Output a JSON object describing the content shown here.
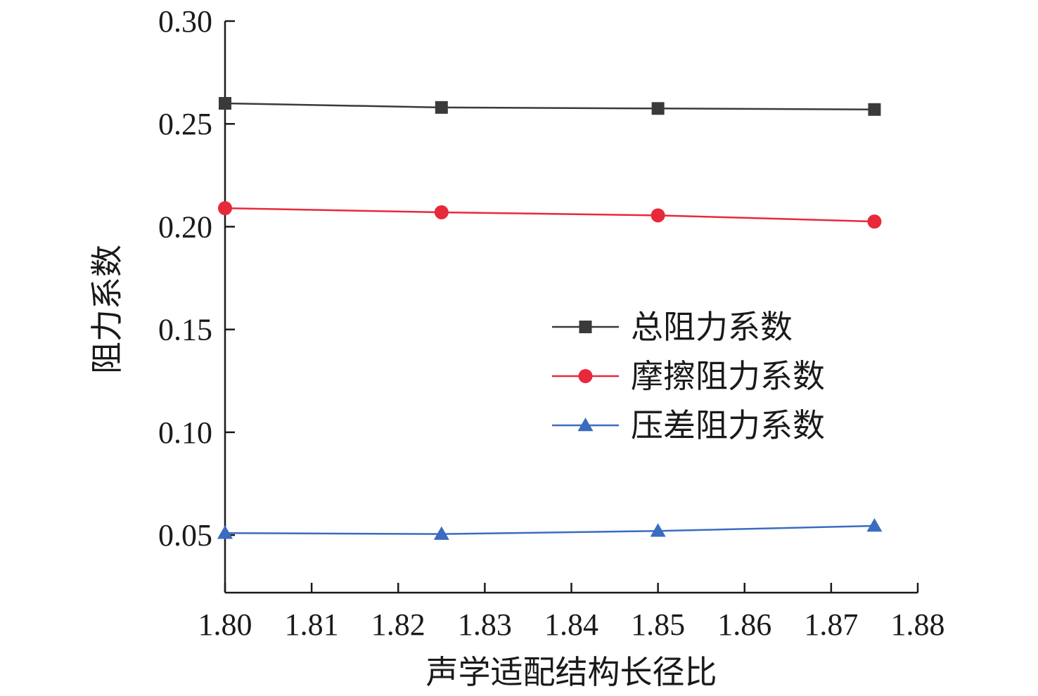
{
  "chart_data": {
    "type": "line",
    "title": "",
    "xlabel": "声学适配结构长径比",
    "ylabel": "阻力系数",
    "x": [
      1.8,
      1.825,
      1.85,
      1.875
    ],
    "xlim": [
      1.8,
      1.88
    ],
    "ylim": [
      0.022,
      0.3
    ],
    "xticks": [
      "1.80",
      "1.81",
      "1.82",
      "1.83",
      "1.84",
      "1.85",
      "1.86",
      "1.87",
      "1.88"
    ],
    "yticks": [
      "0.05",
      "0.10",
      "0.15",
      "0.20",
      "0.25",
      "0.30"
    ],
    "grid": false,
    "legend_position": "center-right",
    "series": [
      {
        "name": "总阻力系数",
        "values": [
          0.26,
          0.258,
          0.2575,
          0.257
        ],
        "color": "#3a3a3a",
        "marker": "square"
      },
      {
        "name": "摩擦阻力系数",
        "values": [
          0.209,
          0.207,
          0.2055,
          0.2025
        ],
        "color": "#e8293b",
        "marker": "circle"
      },
      {
        "name": "压差阻力系数",
        "values": [
          0.051,
          0.0505,
          0.052,
          0.0545
        ],
        "color": "#3a6cc0",
        "marker": "triangle"
      }
    ]
  }
}
